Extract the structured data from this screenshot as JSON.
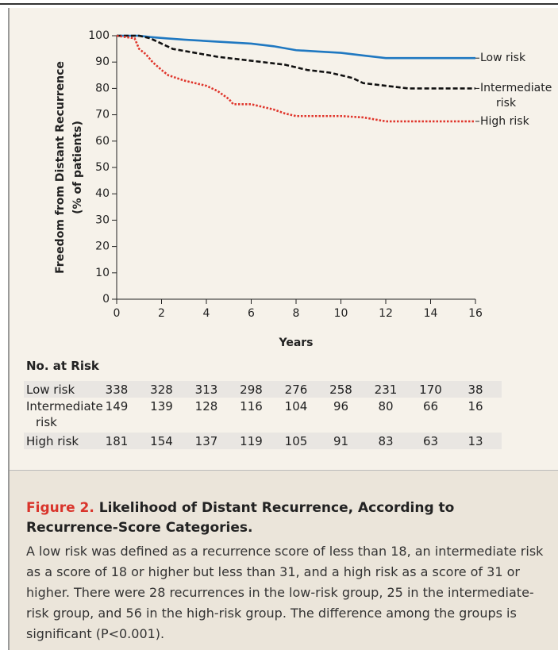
{
  "chart_data": {
    "type": "line",
    "x_label": "Years",
    "y_label": [
      "Freedom from Distant Recurrence",
      "(% of patients)"
    ],
    "xlim": [
      0,
      16
    ],
    "xticks": [
      0,
      2,
      4,
      6,
      8,
      10,
      12,
      14,
      16
    ],
    "ylim": [
      0,
      100
    ],
    "yticks": [
      0,
      10,
      20,
      30,
      40,
      50,
      60,
      70,
      80,
      90,
      100
    ],
    "series": [
      {
        "name": "Low risk",
        "color": "#1f78c1",
        "dash": "solid",
        "x": [
          0,
          1,
          1.5,
          2.2,
          3,
          4,
          5,
          6,
          7,
          8,
          9,
          10,
          11,
          12,
          16
        ],
        "values": [
          100,
          100,
          99.5,
          99,
          98.5,
          98,
          97.5,
          97,
          96,
          94.5,
          94,
          93.5,
          92.5,
          91.5,
          91.5
        ]
      },
      {
        "name": "Intermediate risk",
        "color": "#111111",
        "dash": "dashed",
        "x": [
          0,
          1,
          1.5,
          2,
          2.5,
          3.5,
          4.5,
          5.5,
          6.5,
          7.5,
          8.5,
          9.5,
          10.5,
          11,
          12,
          13,
          16
        ],
        "values": [
          100,
          100,
          99,
          97,
          95,
          93.5,
          92,
          91,
          90,
          89,
          87,
          86,
          84,
          82,
          81,
          80,
          80
        ]
      },
      {
        "name": "High risk",
        "color": "#e0362c",
        "dash": "dotted",
        "x": [
          0,
          0.8,
          1,
          1.3,
          1.6,
          2,
          2.3,
          3,
          3.5,
          4,
          4.5,
          5,
          5.2,
          6,
          7,
          7.5,
          8,
          10,
          11,
          12,
          16
        ],
        "values": [
          100,
          99,
          95,
          93,
          90,
          87,
          85,
          83,
          82,
          81,
          79,
          76,
          74,
          74,
          72,
          70.5,
          69.5,
          69.5,
          69,
          67.5,
          67.5
        ]
      }
    ]
  },
  "risk_table": {
    "title": "No. at Risk",
    "rows": [
      {
        "label": "Low risk",
        "values": [
          338,
          328,
          313,
          298,
          276,
          258,
          231,
          170,
          38
        ]
      },
      {
        "label": "Intermediate risk",
        "values": [
          149,
          139,
          128,
          116,
          104,
          96,
          80,
          66,
          16
        ]
      },
      {
        "label": "High risk",
        "values": [
          181,
          154,
          137,
          119,
          105,
          91,
          83,
          63,
          13
        ]
      }
    ]
  },
  "caption": {
    "figure": "Figure 2.",
    "title": "Likelihood of Distant Recurrence, According to Recurrence-Score Categories.",
    "body": "A low risk was defined as a recurrence score of less than 18, an intermediate risk as a score of 18 or higher but less than 31, and a high risk as a score of 31 or higher. There were 28 recurrences in the low-risk group, 25 in the intermediate-risk group, and 56 in the high-risk group. The difference among the groups is significant (P<0.001)."
  }
}
